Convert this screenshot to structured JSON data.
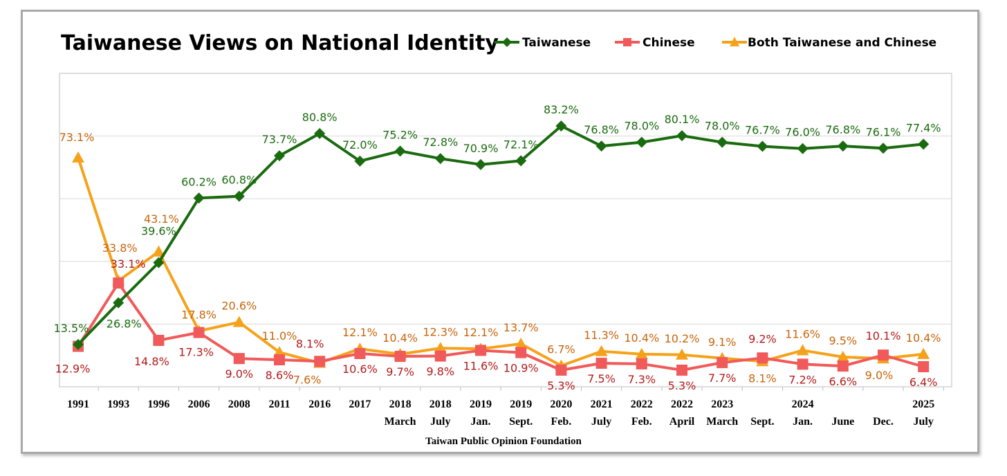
{
  "chart_data": {
    "type": "line",
    "title": "Taiwanese Views on National Identity",
    "source": "Taiwan Public Opinion Foundation",
    "ylim": [
      0,
      100
    ],
    "grid": true,
    "legend_position": "top-right",
    "categories": [
      {
        "year": "1991",
        "sub": ""
      },
      {
        "year": "1993",
        "sub": ""
      },
      {
        "year": "1996",
        "sub": ""
      },
      {
        "year": "2006",
        "sub": ""
      },
      {
        "year": "2008",
        "sub": ""
      },
      {
        "year": "2011",
        "sub": ""
      },
      {
        "year": "2016",
        "sub": ""
      },
      {
        "year": "2017",
        "sub": ""
      },
      {
        "year": "2018",
        "sub": "March"
      },
      {
        "year": "2018",
        "sub": "July"
      },
      {
        "year": "2019",
        "sub": "Jan."
      },
      {
        "year": "2019",
        "sub": "Sept."
      },
      {
        "year": "2020",
        "sub": "Feb."
      },
      {
        "year": "2021",
        "sub": "July"
      },
      {
        "year": "2022",
        "sub": "Feb."
      },
      {
        "year": "2022",
        "sub": "April"
      },
      {
        "year": "2023",
        "sub": "March"
      },
      {
        "year": "",
        "sub": "Sept."
      },
      {
        "year": "2024",
        "sub": "Jan."
      },
      {
        "year": "",
        "sub": "June"
      },
      {
        "year": "",
        "sub": "Dec."
      },
      {
        "year": "2025",
        "sub": "July"
      }
    ],
    "series": [
      {
        "name": "Taiwanese",
        "color": "#1a6b0f",
        "label_color": "#1a6b0f",
        "marker": "diamond",
        "values": [
          13.5,
          26.8,
          39.6,
          60.2,
          60.8,
          73.7,
          80.8,
          72.0,
          75.2,
          72.8,
          70.9,
          72.1,
          83.2,
          76.8,
          78.0,
          80.1,
          78.0,
          76.7,
          76.0,
          76.8,
          76.1,
          77.4
        ]
      },
      {
        "name": "Chinese",
        "color": "#f05a5a",
        "label_color": "#b31a1a",
        "marker": "square",
        "values": [
          12.9,
          33.1,
          14.8,
          17.3,
          9.0,
          8.6,
          8.1,
          10.6,
          9.7,
          9.8,
          11.6,
          10.9,
          5.3,
          7.5,
          7.3,
          5.3,
          7.7,
          9.2,
          7.2,
          6.6,
          10.1,
          6.4
        ]
      },
      {
        "name": "Both Taiwanese and Chinese",
        "color": "#f5a21b",
        "label_color": "#c8640a",
        "marker": "triangle",
        "values": [
          73.1,
          33.8,
          43.1,
          17.8,
          20.6,
          11.0,
          7.6,
          12.1,
          10.4,
          12.3,
          12.1,
          13.7,
          6.7,
          11.3,
          10.4,
          10.2,
          9.1,
          8.1,
          11.6,
          9.5,
          9.0,
          10.4
        ]
      }
    ]
  }
}
